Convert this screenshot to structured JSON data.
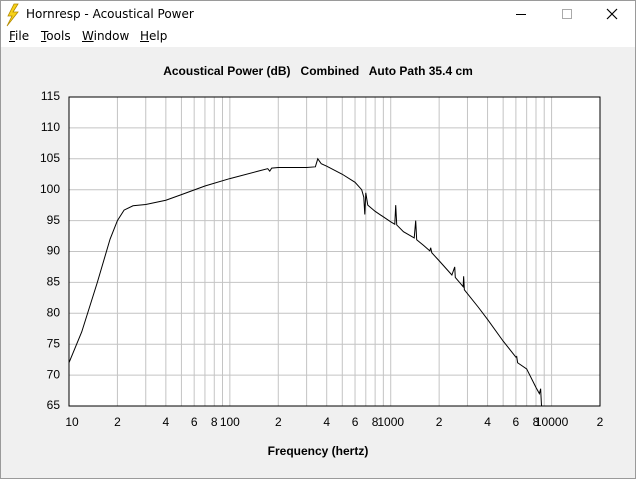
{
  "window": {
    "title": "Hornresp - Acoustical Power",
    "menu": [
      "File",
      "Tools",
      "Window",
      "Help"
    ]
  },
  "chart_data": {
    "type": "line",
    "title": "Acoustical Power (dB)   Combined   Auto Path 35.4 cm",
    "xlabel": "Frequency (hertz)",
    "xscale": "log",
    "x": [
      10,
      12,
      15,
      18,
      20,
      22,
      25,
      30,
      40,
      50,
      70,
      100,
      150,
      172,
      177,
      182,
      200,
      300,
      340,
      352,
      370,
      400,
      500,
      600,
      660,
      680,
      690,
      700,
      720,
      800,
      1000,
      1060,
      1074,
      1090,
      1200,
      1400,
      1430,
      1450,
      1600,
      1750,
      1772,
      1800,
      2000,
      2400,
      2500,
      2520,
      2700,
      2820,
      2840,
      2870,
      3500,
      4000,
      5000,
      6000,
      6070,
      6150,
      7000,
      8000,
      8400,
      8550,
      8650,
      8800
    ],
    "values": [
      72,
      77,
      85,
      92,
      95,
      96.7,
      97.4,
      97.6,
      98.3,
      99.2,
      100.6,
      101.8,
      103,
      103.4,
      103,
      103.5,
      103.6,
      103.6,
      103.7,
      105,
      104.2,
      103.8,
      102.5,
      101.2,
      100,
      98.8,
      96,
      99.5,
      97.5,
      96.5,
      94.8,
      94.4,
      97.5,
      94.3,
      93.2,
      92.2,
      95,
      91.9,
      91,
      90.1,
      90.6,
      89.8,
      88.5,
      86.2,
      87.5,
      85.8,
      84.9,
      84.3,
      86,
      83.8,
      81,
      79,
      75.5,
      72.9,
      73,
      72,
      71,
      68,
      67,
      67.8,
      65.2,
      64
    ],
    "color": "#000000",
    "xlim": [
      10,
      20000
    ],
    "xticks": [
      10,
      {
        "value": 20,
        "label": "2"
      },
      {
        "value": 40,
        "label": "4"
      },
      {
        "value": 60,
        "label": "6"
      },
      {
        "value": 80,
        "label": "8"
      },
      100,
      {
        "value": 200,
        "label": "2"
      },
      {
        "value": 400,
        "label": "4"
      },
      {
        "value": 600,
        "label": "6"
      },
      {
        "value": 800,
        "label": "8"
      },
      1000,
      {
        "value": 2000,
        "label": "2"
      },
      {
        "value": 4000,
        "label": "4"
      },
      {
        "value": 6000,
        "label": "6"
      },
      {
        "value": 8000,
        "label": "8"
      },
      10000,
      {
        "value": 20000,
        "label": "2"
      }
    ],
    "xminor": [
      30,
      50,
      70,
      90,
      300,
      500,
      700,
      900,
      3000,
      5000,
      7000,
      9000
    ],
    "ylim": [
      65,
      115
    ],
    "yticks": [
      65,
      70,
      75,
      80,
      85,
      90,
      95,
      100,
      105,
      110,
      115
    ],
    "grid": true
  }
}
